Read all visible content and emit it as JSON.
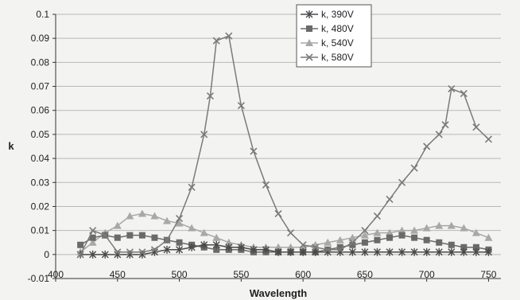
{
  "chart_data": {
    "type": "line",
    "title": "",
    "xlabel": "Wavelength",
    "ylabel": "k",
    "xlim": [
      400,
      760
    ],
    "ylim": [
      -0.01,
      0.1
    ],
    "x_ticks": [
      400,
      450,
      500,
      550,
      600,
      650,
      700,
      750
    ],
    "x_tick_labels": [
      "400",
      "450",
      "500",
      "550",
      "600",
      "650",
      "700",
      "750"
    ],
    "y_ticks": [
      -0.01,
      0,
      0.01,
      0.02,
      0.03,
      0.04,
      0.05,
      0.06,
      0.07,
      0.08,
      0.09,
      0.1
    ],
    "y_tick_labels": [
      "-0.01",
      "0",
      "0.01",
      "0.02",
      "0.03",
      "0.04",
      "0.05",
      "0.06",
      "0.07",
      "0.08",
      "0.09",
      "0.1"
    ],
    "grid": true,
    "legend_position": "top-right",
    "series": [
      {
        "name": "k, 390V",
        "marker": "asterisk",
        "color": "#4a4a4a",
        "x": [
          420,
          430,
          440,
          450,
          460,
          470,
          480,
          490,
          500,
          510,
          520,
          530,
          540,
          550,
          560,
          570,
          580,
          590,
          600,
          610,
          620,
          630,
          640,
          650,
          660,
          670,
          680,
          690,
          700,
          710,
          720,
          730,
          740,
          750
        ],
        "y": [
          0.0,
          0.0,
          0.0,
          0.0,
          0.0,
          0.0,
          0.001,
          0.002,
          0.002,
          0.003,
          0.004,
          0.004,
          0.003,
          0.003,
          0.002,
          0.002,
          0.001,
          0.001,
          0.001,
          0.001,
          0.001,
          0.001,
          0.001,
          0.001,
          0.001,
          0.001,
          0.001,
          0.001,
          0.001,
          0.001,
          0.001,
          0.001,
          0.001,
          0.001
        ]
      },
      {
        "name": "k, 480V",
        "marker": "square",
        "color": "#6a6a6a",
        "x": [
          420,
          430,
          440,
          450,
          460,
          470,
          480,
          490,
          500,
          510,
          520,
          530,
          540,
          550,
          560,
          570,
          580,
          590,
          600,
          610,
          620,
          630,
          640,
          650,
          660,
          670,
          680,
          690,
          700,
          710,
          720,
          730,
          740,
          750
        ],
        "y": [
          0.004,
          0.007,
          0.008,
          0.007,
          0.008,
          0.008,
          0.007,
          0.006,
          0.005,
          0.004,
          0.003,
          0.002,
          0.002,
          0.002,
          0.001,
          0.001,
          0.001,
          0.001,
          0.001,
          0.001,
          0.002,
          0.003,
          0.004,
          0.005,
          0.006,
          0.007,
          0.008,
          0.007,
          0.006,
          0.005,
          0.004,
          0.003,
          0.003,
          0.002
        ]
      },
      {
        "name": "k, 540V",
        "marker": "triangle",
        "color": "#a8a8a8",
        "x": [
          420,
          430,
          440,
          450,
          460,
          470,
          480,
          490,
          500,
          510,
          520,
          530,
          540,
          550,
          560,
          570,
          580,
          590,
          600,
          610,
          620,
          630,
          640,
          650,
          660,
          670,
          680,
          690,
          700,
          710,
          720,
          730,
          740,
          750
        ],
        "y": [
          0.001,
          0.005,
          0.009,
          0.012,
          0.016,
          0.017,
          0.016,
          0.014,
          0.013,
          0.011,
          0.009,
          0.007,
          0.005,
          0.004,
          0.003,
          0.003,
          0.003,
          0.003,
          0.003,
          0.004,
          0.005,
          0.006,
          0.007,
          0.008,
          0.009,
          0.009,
          0.01,
          0.01,
          0.011,
          0.012,
          0.012,
          0.011,
          0.009,
          0.007
        ]
      },
      {
        "name": "k, 580V",
        "marker": "x",
        "color": "#7a7a7a",
        "x": [
          420,
          430,
          440,
          450,
          460,
          470,
          480,
          490,
          500,
          510,
          520,
          525,
          530,
          540,
          550,
          560,
          570,
          580,
          590,
          600,
          610,
          620,
          630,
          640,
          650,
          660,
          670,
          680,
          690,
          700,
          710,
          715,
          720,
          730,
          740,
          750
        ],
        "y": [
          0.0,
          0.01,
          0.008,
          0.001,
          0.001,
          0.001,
          0.002,
          0.006,
          0.015,
          0.028,
          0.05,
          0.066,
          0.089,
          0.091,
          0.062,
          0.043,
          0.029,
          0.017,
          0.009,
          0.004,
          0.003,
          0.002,
          0.002,
          0.005,
          0.01,
          0.016,
          0.023,
          0.03,
          0.036,
          0.045,
          0.05,
          0.054,
          0.069,
          0.067,
          0.053,
          0.048
        ]
      }
    ]
  }
}
